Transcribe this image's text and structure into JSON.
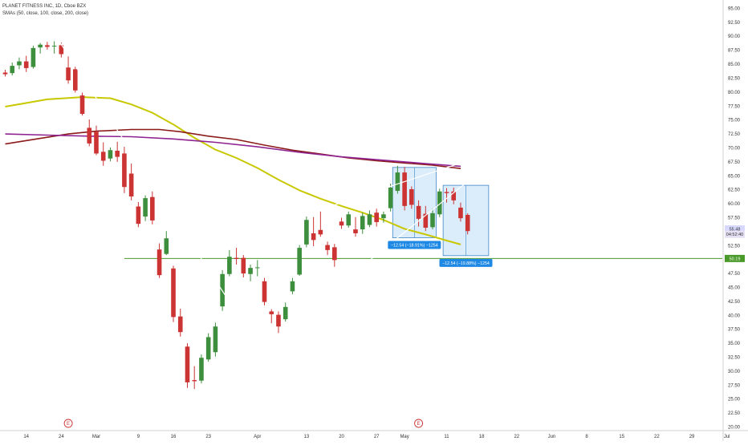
{
  "legend": {
    "title": "PLANET FITNESS INC, 1D, Cboe BZX",
    "indicators": "SMAs (50, close, 100, close, 200, close)"
  },
  "chart_data": {
    "type": "candlestick",
    "ylim": [
      19.5,
      96.5
    ],
    "y_ticks": [
      "20.00",
      "22.50",
      "25.00",
      "27.50",
      "30.00",
      "32.50",
      "35.00",
      "37.50",
      "40.00",
      "42.50",
      "45.00",
      "47.50",
      "50.00",
      "52.50",
      "55.00",
      "57.50",
      "60.00",
      "62.50",
      "65.00",
      "67.50",
      "70.00",
      "72.50",
      "75.00",
      "77.50",
      "80.00",
      "82.50",
      "85.00",
      "87.50",
      "90.00",
      "92.50",
      "95.00"
    ],
    "x_ticks": [
      {
        "label": "14",
        "i": 3
      },
      {
        "label": "24",
        "i": 8
      },
      {
        "label": "Mar",
        "i": 13
      },
      {
        "label": "9",
        "i": 19
      },
      {
        "label": "16",
        "i": 24
      },
      {
        "label": "23",
        "i": 29
      },
      {
        "label": "Apr",
        "i": 36
      },
      {
        "label": "13",
        "i": 43
      },
      {
        "label": "20",
        "i": 48
      },
      {
        "label": "27",
        "i": 53
      },
      {
        "label": "May",
        "i": 57
      },
      {
        "label": "11",
        "i": 63
      },
      {
        "label": "18",
        "i": 68
      },
      {
        "label": "22",
        "i": 73
      },
      {
        "label": "Jun",
        "i": 78
      },
      {
        "label": "8",
        "i": 83
      },
      {
        "label": "15",
        "i": 88
      },
      {
        "label": "22",
        "i": 93
      },
      {
        "label": "29",
        "i": 98
      },
      {
        "label": "Jul",
        "i": 103
      }
    ],
    "earnings_markers": [
      {
        "label": "E",
        "i": 9
      },
      {
        "label": "E",
        "i": 59
      }
    ],
    "candles": [
      {
        "o": 83.5,
        "h": 84.0,
        "l": 82.8,
        "c": 83.2
      },
      {
        "o": 83.4,
        "h": 85.3,
        "l": 83.0,
        "c": 84.7
      },
      {
        "o": 84.8,
        "h": 86.2,
        "l": 84.1,
        "c": 85.5
      },
      {
        "o": 85.5,
        "h": 86.5,
        "l": 83.6,
        "c": 84.3
      },
      {
        "o": 84.5,
        "h": 88.3,
        "l": 84.2,
        "c": 87.9
      },
      {
        "o": 88.0,
        "h": 88.8,
        "l": 86.9,
        "c": 88.5
      },
      {
        "o": 88.4,
        "h": 89.0,
        "l": 87.6,
        "c": 88.1
      },
      {
        "o": 88.2,
        "h": 89.1,
        "l": 86.9,
        "c": 88.3
      },
      {
        "o": 88.4,
        "h": 88.9,
        "l": 86.2,
        "c": 86.8
      },
      {
        "o": 84.4,
        "h": 86.4,
        "l": 81.5,
        "c": 82.1
      },
      {
        "o": 84.1,
        "h": 84.6,
        "l": 79.9,
        "c": 80.3
      },
      {
        "o": 79.4,
        "h": 79.9,
        "l": 75.8,
        "c": 76.1
      },
      {
        "o": 73.6,
        "h": 75.1,
        "l": 70.3,
        "c": 70.8
      },
      {
        "o": 72.9,
        "h": 74.0,
        "l": 68.7,
        "c": 69.0
      },
      {
        "o": 69.3,
        "h": 71.0,
        "l": 66.8,
        "c": 67.7
      },
      {
        "o": 68.1,
        "h": 70.1,
        "l": 67.6,
        "c": 69.6
      },
      {
        "o": 69.5,
        "h": 71.1,
        "l": 67.5,
        "c": 68.4
      },
      {
        "o": 69.0,
        "h": 70.2,
        "l": 61.9,
        "c": 63.0
      },
      {
        "o": 65.4,
        "h": 67.2,
        "l": 60.6,
        "c": 61.3
      },
      {
        "o": 59.5,
        "h": 60.3,
        "l": 55.8,
        "c": 56.4
      },
      {
        "o": 57.7,
        "h": 61.5,
        "l": 56.9,
        "c": 61.0
      },
      {
        "o": 61.2,
        "h": 62.2,
        "l": 56.3,
        "c": 57.0
      },
      {
        "o": 51.8,
        "h": 52.9,
        "l": 46.7,
        "c": 47.2
      },
      {
        "o": 51.0,
        "h": 55.1,
        "l": 50.8,
        "c": 53.8
      },
      {
        "o": 48.4,
        "h": 48.9,
        "l": 38.8,
        "c": 39.7
      },
      {
        "o": 39.8,
        "h": 41.2,
        "l": 36.2,
        "c": 37.0
      },
      {
        "o": 34.4,
        "h": 35.0,
        "l": 27.0,
        "c": 28.0
      },
      {
        "o": 28.4,
        "h": 30.9,
        "l": 26.8,
        "c": 28.2
      },
      {
        "o": 28.3,
        "h": 33.0,
        "l": 27.8,
        "c": 32.4
      },
      {
        "o": 32.1,
        "h": 36.8,
        "l": 31.7,
        "c": 36.1
      },
      {
        "o": 33.4,
        "h": 38.7,
        "l": 32.6,
        "c": 38.0
      },
      {
        "o": 41.6,
        "h": 48.1,
        "l": 40.8,
        "c": 47.4
      },
      {
        "o": 47.4,
        "h": 51.7,
        "l": 47.0,
        "c": 50.5
      },
      {
        "o": 50.3,
        "h": 52.1,
        "l": 49.1,
        "c": 50.1
      },
      {
        "o": 50.3,
        "h": 50.8,
        "l": 46.8,
        "c": 47.5
      },
      {
        "o": 47.4,
        "h": 49.1,
        "l": 46.1,
        "c": 48.5
      },
      {
        "o": 48.5,
        "h": 49.9,
        "l": 47.0,
        "c": 48.6
      },
      {
        "o": 46.1,
        "h": 46.7,
        "l": 41.8,
        "c": 42.4
      },
      {
        "o": 40.7,
        "h": 41.1,
        "l": 38.6,
        "c": 40.2
      },
      {
        "o": 40.1,
        "h": 40.7,
        "l": 36.7,
        "c": 38.0
      },
      {
        "o": 39.3,
        "h": 42.3,
        "l": 38.9,
        "c": 41.5
      },
      {
        "o": 44.3,
        "h": 46.7,
        "l": 43.8,
        "c": 46.1
      },
      {
        "o": 47.3,
        "h": 52.6,
        "l": 47.1,
        "c": 52.1
      },
      {
        "o": 52.7,
        "h": 57.7,
        "l": 52.2,
        "c": 57.1
      },
      {
        "o": 54.7,
        "h": 57.6,
        "l": 52.4,
        "c": 53.5
      },
      {
        "o": 55.3,
        "h": 58.6,
        "l": 54.1,
        "c": 54.5
      },
      {
        "o": 52.6,
        "h": 53.2,
        "l": 50.8,
        "c": 51.7
      },
      {
        "o": 52.2,
        "h": 52.8,
        "l": 48.7,
        "c": 49.9
      },
      {
        "o": 56.8,
        "h": 57.5,
        "l": 55.5,
        "c": 56.1
      },
      {
        "o": 56.1,
        "h": 58.6,
        "l": 55.7,
        "c": 58.1
      },
      {
        "o": 55.4,
        "h": 57.6,
        "l": 54.1,
        "c": 54.7
      },
      {
        "o": 55.4,
        "h": 58.4,
        "l": 54.6,
        "c": 57.8
      },
      {
        "o": 56.2,
        "h": 58.8,
        "l": 55.8,
        "c": 58.1
      },
      {
        "o": 58.4,
        "h": 59.1,
        "l": 55.9,
        "c": 56.7
      },
      {
        "o": 57.4,
        "h": 58.6,
        "l": 56.6,
        "c": 58.1
      },
      {
        "o": 59.2,
        "h": 63.6,
        "l": 58.6,
        "c": 62.9
      },
      {
        "o": 62.3,
        "h": 66.8,
        "l": 61.8,
        "c": 65.6
      },
      {
        "o": 65.6,
        "h": 66.6,
        "l": 58.8,
        "c": 59.6
      },
      {
        "o": 62.6,
        "h": 63.1,
        "l": 59.1,
        "c": 59.8
      },
      {
        "o": 59.6,
        "h": 60.6,
        "l": 55.9,
        "c": 57.3
      },
      {
        "o": 58.2,
        "h": 59.6,
        "l": 55.1,
        "c": 55.7
      },
      {
        "o": 55.8,
        "h": 59.1,
        "l": 55.4,
        "c": 58.3
      },
      {
        "o": 58.1,
        "h": 62.7,
        "l": 57.6,
        "c": 62.2
      },
      {
        "o": 62.1,
        "h": 62.8,
        "l": 60.2,
        "c": 61.9
      },
      {
        "o": 62.2,
        "h": 62.9,
        "l": 59.9,
        "c": 60.6
      },
      {
        "o": 59.3,
        "h": 60.2,
        "l": 56.8,
        "c": 57.4
      },
      {
        "o": 58.0,
        "h": 58.3,
        "l": 54.5,
        "c": 55.1
      }
    ],
    "sma_series": [
      {
        "color": "#c8c800",
        "points": [
          [
            0,
            77.4
          ],
          [
            6,
            78.7
          ],
          [
            11,
            79.1
          ],
          [
            15,
            78.9
          ],
          [
            18,
            77.8
          ],
          [
            21,
            76.3
          ],
          [
            24,
            74.2
          ],
          [
            27,
            71.8
          ],
          [
            30,
            69.7
          ],
          [
            33,
            68.2
          ],
          [
            36,
            66.4
          ],
          [
            39,
            64.3
          ],
          [
            42,
            62.4
          ],
          [
            45,
            60.9
          ],
          [
            48,
            59.6
          ],
          [
            51,
            58.4
          ],
          [
            54,
            57.1
          ],
          [
            57,
            55.5
          ],
          [
            60,
            54.5
          ],
          [
            63,
            53.4
          ],
          [
            65,
            52.7
          ]
        ]
      },
      {
        "color": "#8b1a1a",
        "points": [
          [
            0,
            70.7
          ],
          [
            5,
            71.7
          ],
          [
            9,
            72.5
          ],
          [
            13,
            73.0
          ],
          [
            18,
            73.3
          ],
          [
            22,
            73.3
          ],
          [
            25,
            72.9
          ],
          [
            29,
            72.1
          ],
          [
            33,
            71.5
          ],
          [
            37,
            70.5
          ],
          [
            41,
            69.6
          ],
          [
            45,
            68.9
          ],
          [
            49,
            68.2
          ],
          [
            53,
            67.7
          ],
          [
            57,
            67.3
          ],
          [
            61,
            66.9
          ],
          [
            65,
            66.3
          ]
        ]
      },
      {
        "color": "#8e2391",
        "points": [
          [
            0,
            72.5
          ],
          [
            6,
            72.3
          ],
          [
            12,
            72.1
          ],
          [
            18,
            72.0
          ],
          [
            24,
            71.6
          ],
          [
            30,
            71.0
          ],
          [
            36,
            70.2
          ],
          [
            42,
            69.2
          ],
          [
            48,
            68.4
          ],
          [
            54,
            67.8
          ],
          [
            60,
            67.2
          ],
          [
            65,
            66.7
          ]
        ]
      }
    ],
    "trend_lines": [
      {
        "x1": 7.5,
        "y1": 89.5,
        "x2": 41.5,
        "y2": 24.2
      },
      {
        "x1": 26.5,
        "y1": 24.1,
        "x2": 68.0,
        "y2": 66.0
      },
      {
        "x1": 31.0,
        "y1": 53.1,
        "x2": 65.0,
        "y2": 67.3
      }
    ],
    "horizontal_line": {
      "value": 50.19,
      "color": "#4a9a2a",
      "label": "50.19"
    },
    "measure_boxes": [
      {
        "i0": 55.3,
        "i1": 61.5,
        "top": 66.5,
        "bottom": 53.9,
        "label": "−12.54 (−18.91%) −1254"
      },
      {
        "i0": 62.5,
        "i1": 69.0,
        "top": 63.3,
        "bottom": 50.7,
        "label": "−12.54 (−19.88%) −1254"
      }
    ],
    "price_labels": [
      {
        "value": 55.48,
        "label": "55.48",
        "bg": "#d8d8ff",
        "fg": "#333333"
      },
      {
        "value": 54.52,
        "label": "04:52:40",
        "bg": "#e6e0f5",
        "fg": "#333333"
      }
    ],
    "colors": {
      "up": "#3d8f3d",
      "down": "#cc3333",
      "measure_fill": "#cfe6f8",
      "measure_stroke": "#3d86c6",
      "measure_label_bg": "#1e88e5",
      "trend": "#ffffff"
    }
  }
}
